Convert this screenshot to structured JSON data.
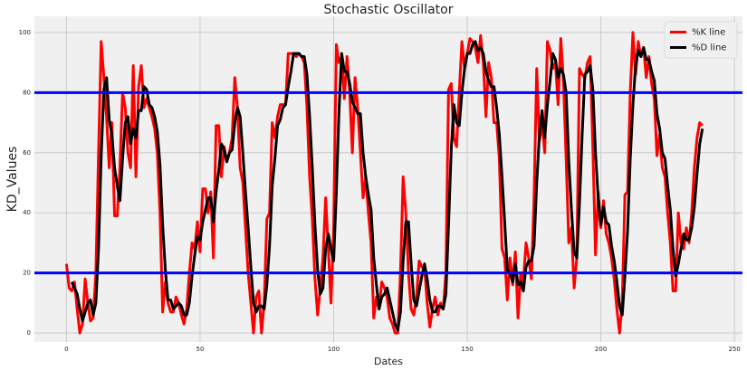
{
  "chart_data": {
    "type": "line",
    "title": "Stochastic Oscillator",
    "x_label": "Dates",
    "y_label": "KD_Values",
    "x": [
      0,
      1,
      2,
      3,
      4,
      5,
      6,
      7,
      8,
      9,
      10,
      11,
      12,
      13,
      14,
      15,
      16,
      17,
      18,
      19,
      20,
      21,
      22,
      23,
      24,
      25,
      26,
      27,
      28,
      29,
      30,
      31,
      32,
      33,
      34,
      35,
      36,
      37,
      38,
      39,
      40,
      41,
      42,
      43,
      44,
      45,
      46,
      47,
      48,
      49,
      50,
      51,
      52,
      53,
      54,
      55,
      56,
      57,
      58,
      59,
      60,
      61,
      62,
      63,
      64,
      65,
      66,
      67,
      68,
      69,
      70,
      71,
      72,
      73,
      74,
      75,
      76,
      77,
      78,
      79,
      80,
      81,
      82,
      83,
      84,
      85,
      86,
      87,
      88,
      89,
      90,
      91,
      92,
      93,
      94,
      95,
      96,
      97,
      98,
      99,
      100,
      101,
      102,
      103,
      104,
      105,
      106,
      107,
      108,
      109,
      110,
      111,
      112,
      113,
      114,
      115,
      116,
      117,
      118,
      119,
      120,
      121,
      122,
      123,
      124,
      125,
      126,
      127,
      128,
      129,
      130,
      131,
      132,
      133,
      134,
      135,
      136,
      137,
      138,
      139,
      140,
      141,
      142,
      143,
      144,
      145,
      146,
      147,
      148,
      149,
      150,
      151,
      152,
      153,
      154,
      155,
      156,
      157,
      158,
      159,
      160,
      161,
      162,
      163,
      164,
      165,
      166,
      167,
      168,
      169,
      170,
      171,
      172,
      173,
      174,
      175,
      176,
      177,
      178,
      179,
      180,
      181,
      182,
      183,
      184,
      185,
      186,
      187,
      188,
      189,
      190,
      191,
      192,
      193,
      194,
      195,
      196,
      197,
      198,
      199,
      200,
      201,
      202,
      203,
      204,
      205,
      206,
      207,
      208,
      209,
      210,
      211,
      212,
      213,
      214,
      215,
      216,
      217,
      218,
      219,
      220,
      221,
      222,
      223,
      224,
      225,
      226,
      227,
      228,
      229,
      230,
      231,
      232,
      233,
      234,
      235,
      236,
      237,
      238
    ],
    "series": [
      {
        "name": "%K line",
        "color": "#ff0000",
        "values": [
          23,
          15,
          14,
          17,
          8,
          0,
          3,
          18,
          10,
          4,
          5,
          20,
          60,
          97,
          85,
          72,
          55,
          70,
          39,
          39,
          55,
          80,
          75,
          60,
          55,
          89,
          52,
          82,
          89,
          75,
          78,
          75,
          72,
          68,
          60,
          40,
          7,
          17,
          10,
          7,
          7,
          12,
          10,
          6,
          3,
          8,
          20,
          30,
          28,
          37,
          27,
          48,
          48,
          40,
          47,
          25,
          69,
          69,
          52,
          62,
          57,
          60,
          65,
          85,
          75,
          55,
          50,
          35,
          20,
          10,
          0,
          12,
          14,
          0,
          10,
          38,
          40,
          70,
          65,
          72,
          76,
          76,
          76,
          93,
          93,
          93,
          92,
          93,
          92,
          90,
          75,
          52,
          38,
          18,
          6,
          15,
          25,
          45,
          28,
          10,
          35,
          96,
          90,
          92,
          78,
          92,
          80,
          60,
          85,
          75,
          60,
          45,
          52,
          40,
          30,
          5,
          12,
          8,
          17,
          15,
          12,
          5,
          3,
          0,
          0,
          20,
          52,
          40,
          20,
          8,
          6,
          12,
          24,
          22,
          22,
          10,
          2,
          8,
          12,
          6,
          10,
          8,
          20,
          81,
          83,
          65,
          62,
          80,
          97,
          88,
          93,
          98,
          97,
          95,
          90,
          99,
          90,
          72,
          90,
          85,
          70,
          70,
          58,
          28,
          25,
          11,
          25,
          16,
          27,
          5,
          20,
          17,
          30,
          25,
          18,
          45,
          88,
          64,
          70,
          60,
          97,
          94,
          88,
          90,
          76,
          98,
          84,
          58,
          30,
          35,
          15,
          25,
          88,
          86,
          85,
          90,
          92,
          62,
          26,
          47,
          35,
          44,
          33,
          30,
          25,
          18,
          8,
          0,
          10,
          46,
          47,
          80,
          100,
          86,
          97,
          92,
          95,
          85,
          92,
          83,
          78,
          59,
          66,
          55,
          52,
          40,
          30,
          14,
          14,
          40,
          30,
          28,
          35,
          30,
          40,
          55,
          65,
          70,
          69
        ]
      },
      {
        "name": "%D line",
        "color": "#000000",
        "values": [
          null,
          null,
          17,
          15,
          13,
          8,
          4,
          7,
          10,
          11,
          6,
          10,
          28,
          59,
          81,
          85,
          71,
          66,
          55,
          49,
          44,
          58,
          70,
          72,
          63,
          68,
          65,
          74,
          74,
          82,
          81,
          76,
          75,
          72,
          67,
          56,
          36,
          21,
          11,
          11,
          8,
          9,
          10,
          9,
          6,
          6,
          10,
          19,
          26,
          32,
          31,
          37,
          41,
          45,
          45,
          37,
          47,
          54,
          63,
          61,
          57,
          60,
          61,
          70,
          75,
          72,
          60,
          47,
          35,
          22,
          10,
          7,
          9,
          9,
          8,
          16,
          29,
          49,
          58,
          69,
          71,
          75,
          76,
          82,
          87,
          93,
          93,
          93,
          92,
          92,
          86,
          72,
          55,
          36,
          21,
          13,
          15,
          28,
          33,
          28,
          24,
          47,
          74,
          93,
          87,
          87,
          83,
          77,
          75,
          73,
          73,
          60,
          52,
          46,
          41,
          25,
          16,
          8,
          12,
          13,
          15,
          11,
          7,
          3,
          1,
          7,
          24,
          37,
          37,
          23,
          11,
          9,
          14,
          19,
          23,
          18,
          11,
          7,
          7,
          9,
          9,
          8,
          13,
          36,
          61,
          76,
          70,
          69,
          80,
          88,
          93,
          93,
          96,
          97,
          94,
          95,
          93,
          87,
          84,
          82,
          82,
          75,
          66,
          52,
          37,
          21,
          20,
          17,
          23,
          16,
          17,
          14,
          22,
          24,
          24,
          29,
          50,
          66,
          74,
          65,
          76,
          84,
          93,
          91,
          85,
          88,
          86,
          80,
          57,
          41,
          27,
          25,
          43,
          66,
          86,
          87,
          89,
          81,
          60,
          45,
          36,
          42,
          37,
          36,
          29,
          24,
          17,
          9,
          6,
          19,
          34,
          58,
          76,
          89,
          94,
          92,
          95,
          91,
          91,
          87,
          84,
          73,
          68,
          60,
          58,
          49,
          41,
          28,
          19,
          23,
          28,
          33,
          31,
          31,
          35,
          42,
          53,
          63,
          68
        ]
      }
    ],
    "hlines": [
      {
        "value": 80,
        "color": "#0000ff"
      },
      {
        "value": 20,
        "color": "#0000ff"
      }
    ],
    "xlim": [
      -12,
      253
    ],
    "ylim": [
      -3,
      105.4
    ],
    "xticks": [
      0,
      50,
      100,
      150,
      200,
      250
    ],
    "yticks": [
      0,
      20,
      40,
      60,
      80,
      100
    ],
    "grid": true,
    "legend": "upper right"
  }
}
